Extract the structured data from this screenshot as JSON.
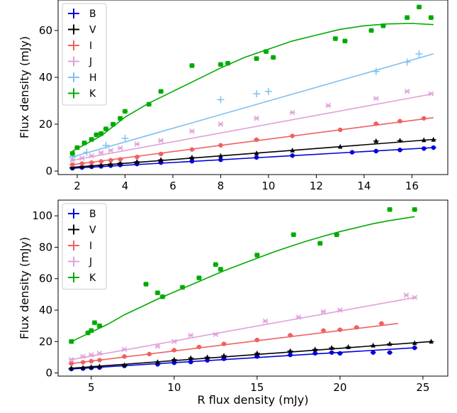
{
  "chart_data": [
    {
      "type": "scatter",
      "title": "",
      "xlabel": "",
      "ylabel": "Flux density (mJy)",
      "xlim": [
        1.2,
        17.5
      ],
      "ylim": [
        -1.5,
        73
      ],
      "xticks": [
        "2",
        "4",
        "6",
        "8",
        "10",
        "12",
        "14",
        "16"
      ],
      "yticks": [
        "0",
        "20",
        "40",
        "60"
      ],
      "grid": false,
      "legend_position": "top-left",
      "series": [
        {
          "name": "B",
          "color": "#0000dd",
          "marker": "circle",
          "fit": [
            [
              1.8,
              1.2
            ],
            [
              16.9,
              10.0
            ]
          ],
          "x": [
            1.8,
            2.2,
            2.6,
            3.0,
            3.4,
            3.8,
            4.5,
            5.5,
            6.8,
            8.0,
            9.5,
            11.0,
            13.5,
            14.5,
            15.5,
            16.5,
            16.9
          ],
          "y": [
            1.2,
            1.5,
            1.8,
            2.0,
            2.3,
            2.6,
            3.0,
            3.6,
            4.2,
            4.8,
            5.8,
            6.6,
            8.0,
            8.5,
            9.0,
            9.6,
            10.0
          ]
        },
        {
          "name": "V",
          "color": "#000000",
          "marker": "triangle",
          "fit": [
            [
              1.8,
              1.6
            ],
            [
              16.9,
              13.5
            ]
          ],
          "x": [
            1.8,
            2.2,
            2.6,
            3.0,
            3.4,
            3.8,
            4.5,
            5.5,
            6.8,
            8.0,
            9.5,
            11.0,
            13.0,
            14.5,
            15.5,
            16.5,
            16.9
          ],
          "y": [
            1.6,
            2.0,
            2.3,
            2.6,
            3.0,
            3.4,
            4.0,
            4.8,
            5.8,
            6.5,
            7.6,
            8.8,
            10.4,
            12.8,
            13.0,
            13.2,
            13.4
          ]
        },
        {
          "name": "I",
          "color": "#f06060",
          "marker": "circle",
          "fit": [
            [
              1.8,
              2.7
            ],
            [
              16.9,
              22.8
            ]
          ],
          "x": [
            1.8,
            2.2,
            2.6,
            3.0,
            3.4,
            3.8,
            4.5,
            5.5,
            6.8,
            8.0,
            9.5,
            11.0,
            13.0,
            14.5,
            15.5,
            16.5
          ],
          "y": [
            2.7,
            3.2,
            3.6,
            4.1,
            4.6,
            5.0,
            6.0,
            7.3,
            9.2,
            11.0,
            13.4,
            15.0,
            17.6,
            20.2,
            21.3,
            22.5
          ]
        },
        {
          "name": "J",
          "color": "#e0a0d8",
          "marker": "x",
          "fit": [
            [
              1.8,
              4.6
            ],
            [
              16.9,
              33.0
            ]
          ],
          "x": [
            1.8,
            2.2,
            2.6,
            3.0,
            3.4,
            3.8,
            4.5,
            5.5,
            6.8,
            8.0,
            9.5,
            11.0,
            12.5,
            14.5,
            15.8,
            16.8
          ],
          "y": [
            4.6,
            5.5,
            6.5,
            7.8,
            8.8,
            9.8,
            11.5,
            13.0,
            17.0,
            20.0,
            22.5,
            25.0,
            28.0,
            31.0,
            34.0,
            33.0
          ]
        },
        {
          "name": "H",
          "color": "#80c0f0",
          "marker": "plus",
          "fit": [
            [
              1.8,
              6.0
            ],
            [
              16.9,
              50.0
            ]
          ],
          "x": [
            1.8,
            2.4,
            3.2,
            4.0,
            8.0,
            9.5,
            10.0,
            14.5,
            15.8,
            16.3
          ],
          "y": [
            6.0,
            8.0,
            11.0,
            14.0,
            30.5,
            33.0,
            34.0,
            42.5,
            46.5,
            50.0
          ]
        },
        {
          "name": "K",
          "color": "#00aa00",
          "marker": "square",
          "fit": [
            [
              1.8,
              8.5
            ],
            [
              3.0,
              15.0
            ],
            [
              4.0,
              23.0
            ],
            [
              5.0,
              29.0
            ],
            [
              6.0,
              34.0
            ],
            [
              7.0,
              39.0
            ],
            [
              8.0,
              44.0
            ],
            [
              9.0,
              48.5
            ],
            [
              10.0,
              52.0
            ],
            [
              11.0,
              55.5
            ],
            [
              12.0,
              58.0
            ],
            [
              13.0,
              60.5
            ],
            [
              14.0,
              62.0
            ],
            [
              15.0,
              62.8
            ],
            [
              16.0,
              63.0
            ],
            [
              16.9,
              62.5
            ]
          ],
          "x": [
            1.8,
            2.0,
            2.3,
            2.6,
            2.8,
            3.0,
            3.2,
            3.5,
            3.8,
            4.0,
            5.0,
            5.5,
            6.8,
            8.0,
            8.3,
            9.5,
            9.9,
            10.2,
            12.8,
            13.2,
            14.3,
            14.8,
            15.8,
            16.3,
            16.8
          ],
          "y": [
            7.5,
            10.0,
            12.0,
            13.5,
            15.5,
            16.0,
            18.0,
            20.0,
            22.5,
            25.5,
            28.5,
            34.0,
            45.0,
            45.5,
            46.0,
            48.0,
            51.0,
            48.5,
            56.5,
            55.5,
            60.0,
            62.0,
            65.5,
            70.0,
            65.5
          ]
        }
      ]
    },
    {
      "type": "scatter",
      "title": "",
      "xlabel": "R flux density (mJy)",
      "ylabel": "Flux density (mJy)",
      "xlim": [
        3.0,
        26.5
      ],
      "ylim": [
        -2,
        110
      ],
      "xticks": [
        "5",
        "10",
        "15",
        "20",
        "25"
      ],
      "yticks": [
        "0",
        "20",
        "40",
        "60",
        "80",
        "100"
      ],
      "grid": false,
      "legend_position": "top-left",
      "series": [
        {
          "name": "B",
          "color": "#0000dd",
          "marker": "circle",
          "fit": [
            [
              3.8,
              2.5
            ],
            [
              24.5,
              16.0
            ]
          ],
          "x": [
            3.8,
            4.5,
            5.0,
            5.5,
            7.0,
            9.0,
            10.0,
            11.0,
            12.0,
            13.0,
            15.0,
            17.0,
            18.5,
            19.5,
            20.0,
            22.0,
            23.0,
            24.5
          ],
          "y": [
            2.5,
            2.8,
            3.2,
            3.4,
            4.5,
            5.5,
            6.5,
            7.0,
            8.0,
            9.0,
            10.5,
            11.5,
            12.5,
            13.0,
            12.5,
            13.0,
            13.0,
            16.0
          ]
        },
        {
          "name": "V",
          "color": "#000000",
          "marker": "triangle",
          "fit": [
            [
              3.8,
              3.0
            ],
            [
              25.5,
              20.0
            ]
          ],
          "x": [
            3.8,
            4.5,
            5.0,
            5.5,
            7.0,
            9.0,
            10.0,
            11.0,
            12.0,
            13.0,
            15.0,
            17.0,
            18.5,
            19.5,
            20.5,
            22.0,
            23.0,
            24.5,
            25.5
          ],
          "y": [
            3.0,
            3.3,
            3.8,
            4.2,
            5.0,
            7.0,
            8.5,
            9.5,
            10.0,
            11.0,
            12.5,
            14.0,
            15.0,
            16.0,
            16.5,
            17.5,
            18.5,
            19.0,
            20.0
          ]
        },
        {
          "name": "I",
          "color": "#f06060",
          "marker": "circle",
          "fit": [
            [
              3.8,
              6.0
            ],
            [
              23.5,
              31.5
            ]
          ],
          "x": [
            3.8,
            4.5,
            5.0,
            5.5,
            7.0,
            8.5,
            10.0,
            11.5,
            13.0,
            15.0,
            17.0,
            19.0,
            20.0,
            21.0,
            22.5
          ],
          "y": [
            6.0,
            6.8,
            7.5,
            8.2,
            10.5,
            12.0,
            14.5,
            16.5,
            18.5,
            21.0,
            24.0,
            27.0,
            27.5,
            29.0,
            31.5
          ]
        },
        {
          "name": "J",
          "color": "#e0a0d8",
          "marker": "x",
          "fit": [
            [
              3.8,
              8.5
            ],
            [
              24.5,
              48.0
            ]
          ],
          "x": [
            3.8,
            4.5,
            5.0,
            5.5,
            7.0,
            9.0,
            10.0,
            11.0,
            12.5,
            15.5,
            17.5,
            19.0,
            20.0,
            24.0,
            24.5
          ],
          "y": [
            8.5,
            10.5,
            11.5,
            12.5,
            15.0,
            17.0,
            20.0,
            24.0,
            24.5,
            33.0,
            35.5,
            39.0,
            40.0,
            49.5,
            48.0
          ]
        },
        {
          "name": "K",
          "color": "#00aa00",
          "marker": "square",
          "fit": [
            [
              3.8,
              20.0
            ],
            [
              5.0,
              26.0
            ],
            [
              6.0,
              31.0
            ],
            [
              7.0,
              37.0
            ],
            [
              8.0,
              42.0
            ],
            [
              9.0,
              47.0
            ],
            [
              10.0,
              51.5
            ],
            [
              11.0,
              56.0
            ],
            [
              12.0,
              60.5
            ],
            [
              13.0,
              65.0
            ],
            [
              14.0,
              69.0
            ],
            [
              15.0,
              73.0
            ],
            [
              16.0,
              77.0
            ],
            [
              17.0,
              80.5
            ],
            [
              18.0,
              84.0
            ],
            [
              19.0,
              87.0
            ],
            [
              20.0,
              90.0
            ],
            [
              21.0,
              92.5
            ],
            [
              22.0,
              95.0
            ],
            [
              23.0,
              97.0
            ],
            [
              24.5,
              99.5
            ]
          ],
          "x": [
            3.8,
            4.8,
            5.0,
            5.2,
            5.5,
            8.3,
            9.0,
            9.3,
            10.5,
            11.5,
            12.5,
            12.8,
            15.0,
            17.2,
            18.8,
            19.8,
            23.0,
            24.5
          ],
          "y": [
            20.0,
            25.5,
            27.0,
            32.0,
            30.0,
            56.5,
            51.0,
            48.5,
            54.5,
            60.5,
            69.0,
            66.0,
            75.0,
            88.0,
            82.5,
            88.0,
            104.0,
            104.0
          ]
        }
      ]
    }
  ]
}
